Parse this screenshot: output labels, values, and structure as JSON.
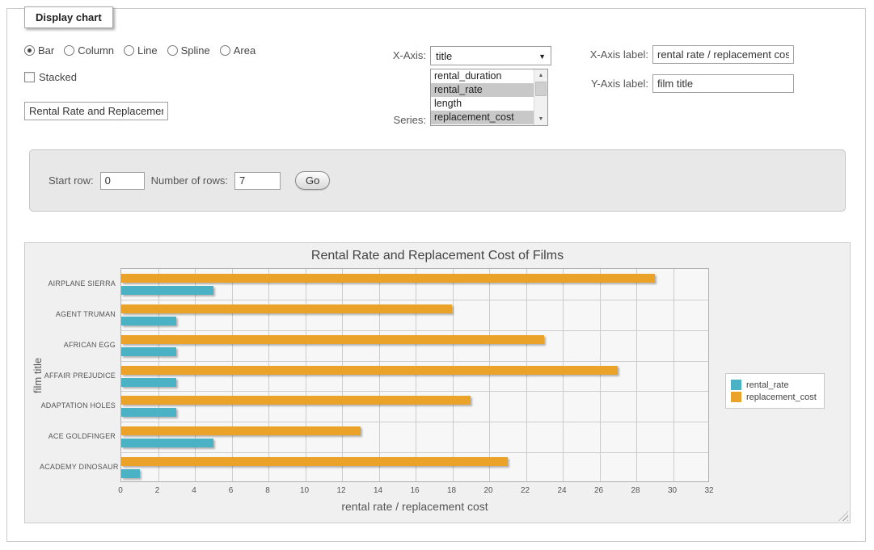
{
  "panel": {
    "legend_title": "Display chart",
    "chart_types": [
      {
        "label": "Bar",
        "selected": true
      },
      {
        "label": "Column",
        "selected": false
      },
      {
        "label": "Line",
        "selected": false
      },
      {
        "label": "Spline",
        "selected": false
      },
      {
        "label": "Area",
        "selected": false
      }
    ],
    "stacked_label": "Stacked",
    "title_input_value": "Rental Rate and Replacement Cost of Films",
    "xaxis_label_text": "X-Axis:",
    "xaxis_select_value": "title",
    "series_label_text": "Series:",
    "series_options": [
      {
        "label": "rental_duration",
        "selected": false
      },
      {
        "label": "rental_rate",
        "selected": true
      },
      {
        "label": "length",
        "selected": false
      },
      {
        "label": "replacement_cost",
        "selected": true
      }
    ],
    "xaxis_field_label": "X-Axis label:",
    "xaxis_field_value": "rental rate / replacement cost",
    "yaxis_field_label": "Y-Axis label:",
    "yaxis_field_value": "film title"
  },
  "rows_panel": {
    "start_row_label": "Start row:",
    "start_row_value": "0",
    "num_rows_label": "Number of rows:",
    "num_rows_value": "7",
    "go_label": "Go"
  },
  "chart_data": {
    "type": "bar",
    "orientation": "horizontal",
    "title": "Rental Rate and Replacement Cost of Films",
    "categories": [
      "AIRPLANE SIERRA",
      "AGENT TRUMAN",
      "AFRICAN EGG",
      "AFFAIR PREJUDICE",
      "ADAPTATION HOLES",
      "ACE GOLDFINGER",
      "ACADEMY DINOSAUR"
    ],
    "series": [
      {
        "name": "rental_rate",
        "color": "#4bb2c5",
        "values": [
          4.99,
          2.99,
          2.99,
          2.99,
          2.99,
          4.99,
          0.99
        ]
      },
      {
        "name": "replacement_cost",
        "color": "#eaa228",
        "values": [
          28.99,
          17.99,
          22.99,
          26.99,
          18.99,
          12.99,
          20.99
        ]
      }
    ],
    "xlabel": "rental rate / replacement cost",
    "ylabel": "film title",
    "xlim": [
      0,
      32
    ],
    "xticks": [
      0,
      2,
      4,
      6,
      8,
      10,
      12,
      14,
      16,
      18,
      20,
      22,
      24,
      26,
      28,
      30,
      32
    ],
    "grid": true,
    "legend_position": "right"
  }
}
